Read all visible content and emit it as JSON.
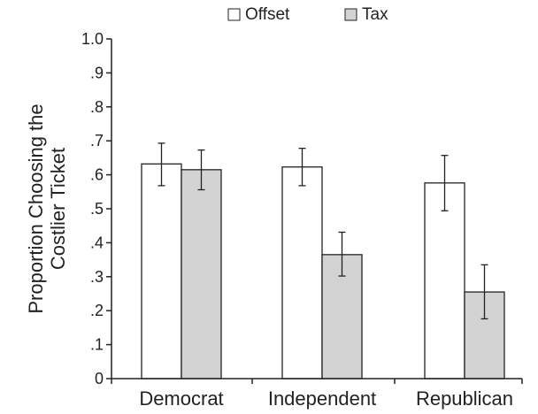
{
  "chart_data": {
    "type": "bar",
    "title": "",
    "xlabel": "",
    "ylabel": "Proportion Choosing the Costlier Ticket",
    "ylabel_lines": [
      "Proportion Choosing the",
      "Costlier Ticket"
    ],
    "ylim": [
      0,
      1.0
    ],
    "yticks": [
      0,
      0.1,
      0.2,
      0.3,
      0.4,
      0.5,
      0.6,
      0.7,
      0.8,
      0.9,
      1.0
    ],
    "ytick_labels": [
      "0",
      ".1",
      ".2",
      ".3",
      ".4",
      ".5",
      ".6",
      ".7",
      ".8",
      ".9",
      "1.0"
    ],
    "categories": [
      "Democrat",
      "Independent",
      "Republican"
    ],
    "series": [
      {
        "name": "Offset",
        "color": "#ffffff",
        "values": [
          0.632,
          0.623,
          0.576
        ],
        "err_low": [
          0.568,
          0.568,
          0.494
        ],
        "err_high": [
          0.693,
          0.678,
          0.657
        ]
      },
      {
        "name": "Tax",
        "color": "#d3d3d3",
        "values": [
          0.615,
          0.365,
          0.255
        ],
        "err_low": [
          0.556,
          0.302,
          0.176
        ],
        "err_high": [
          0.673,
          0.431,
          0.335
        ]
      }
    ],
    "legend_position": "top",
    "grid": false
  }
}
